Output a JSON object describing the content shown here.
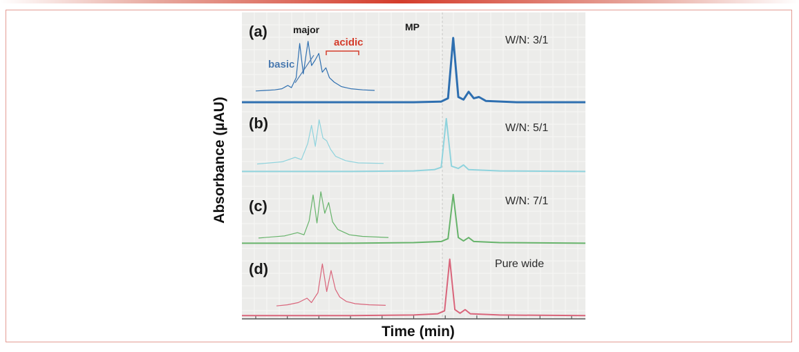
{
  "chart_data": {
    "type": "line",
    "title": "",
    "xlabel": "Time (min)",
    "ylabel": "Absorbance (µAU)",
    "x_tick_count": 11,
    "grid": true,
    "panels": [
      {
        "label": "(a)",
        "condition": "W/N: 3/1",
        "color": "#2e6fb0",
        "peak_labels": [
          "major",
          "basic",
          "acidic",
          "MP"
        ],
        "inset": [
          [
            0,
            0.04
          ],
          [
            0.08,
            0.05
          ],
          [
            0.16,
            0.06
          ],
          [
            0.22,
            0.08
          ],
          [
            0.27,
            0.14
          ],
          [
            0.3,
            0.1
          ],
          [
            0.34,
            0.28
          ],
          [
            0.37,
            0.9
          ],
          [
            0.4,
            0.35
          ],
          [
            0.44,
            0.94
          ],
          [
            0.47,
            0.5
          ],
          [
            0.5,
            0.6
          ],
          [
            0.53,
            0.72
          ],
          [
            0.56,
            0.38
          ],
          [
            0.59,
            0.46
          ],
          [
            0.62,
            0.28
          ],
          [
            0.66,
            0.2
          ],
          [
            0.72,
            0.12
          ],
          [
            0.8,
            0.08
          ],
          [
            0.9,
            0.06
          ],
          [
            1,
            0.05
          ]
        ],
        "trace": [
          [
            0,
            0.02
          ],
          [
            0.3,
            0.02
          ],
          [
            0.5,
            0.02
          ],
          [
            0.58,
            0.03
          ],
          [
            0.6,
            0.08
          ],
          [
            0.615,
            1.0
          ],
          [
            0.63,
            0.1
          ],
          [
            0.645,
            0.06
          ],
          [
            0.66,
            0.18
          ],
          [
            0.675,
            0.08
          ],
          [
            0.69,
            0.1
          ],
          [
            0.71,
            0.04
          ],
          [
            0.8,
            0.02
          ],
          [
            1,
            0.02
          ]
        ]
      },
      {
        "label": "(b)",
        "condition": "W/N: 5/1",
        "color": "#8fd3dd",
        "peak_labels": [],
        "inset": [
          [
            0,
            0.08
          ],
          [
            0.1,
            0.1
          ],
          [
            0.2,
            0.12
          ],
          [
            0.3,
            0.2
          ],
          [
            0.35,
            0.16
          ],
          [
            0.4,
            0.45
          ],
          [
            0.43,
            0.78
          ],
          [
            0.46,
            0.4
          ],
          [
            0.49,
            0.88
          ],
          [
            0.52,
            0.55
          ],
          [
            0.55,
            0.5
          ],
          [
            0.58,
            0.35
          ],
          [
            0.62,
            0.22
          ],
          [
            0.7,
            0.14
          ],
          [
            0.8,
            0.1
          ],
          [
            1,
            0.09
          ]
        ],
        "trace": [
          [
            0,
            0.03
          ],
          [
            0.3,
            0.03
          ],
          [
            0.5,
            0.04
          ],
          [
            0.56,
            0.06
          ],
          [
            0.58,
            0.1
          ],
          [
            0.595,
            0.92
          ],
          [
            0.61,
            0.12
          ],
          [
            0.63,
            0.08
          ],
          [
            0.645,
            0.14
          ],
          [
            0.66,
            0.06
          ],
          [
            0.75,
            0.04
          ],
          [
            1,
            0.03
          ]
        ]
      },
      {
        "label": "(c)",
        "condition": "W/N: 7/1",
        "color": "#66b36a",
        "peak_labels": [],
        "inset": [
          [
            0,
            0.04
          ],
          [
            0.1,
            0.06
          ],
          [
            0.2,
            0.08
          ],
          [
            0.3,
            0.14
          ],
          [
            0.35,
            0.1
          ],
          [
            0.39,
            0.36
          ],
          [
            0.42,
            0.84
          ],
          [
            0.45,
            0.32
          ],
          [
            0.48,
            0.9
          ],
          [
            0.51,
            0.5
          ],
          [
            0.54,
            0.7
          ],
          [
            0.57,
            0.34
          ],
          [
            0.61,
            0.2
          ],
          [
            0.7,
            0.1
          ],
          [
            0.8,
            0.07
          ],
          [
            1,
            0.05
          ]
        ],
        "trace": [
          [
            0,
            0.02
          ],
          [
            0.3,
            0.02
          ],
          [
            0.5,
            0.03
          ],
          [
            0.58,
            0.05
          ],
          [
            0.6,
            0.1
          ],
          [
            0.615,
            0.88
          ],
          [
            0.63,
            0.12
          ],
          [
            0.645,
            0.06
          ],
          [
            0.66,
            0.12
          ],
          [
            0.675,
            0.05
          ],
          [
            0.75,
            0.03
          ],
          [
            1,
            0.02
          ]
        ]
      },
      {
        "label": "(d)",
        "condition": "Pure wide",
        "color": "#d9647a",
        "peak_labels": [],
        "inset": [
          [
            0,
            0.06
          ],
          [
            0.1,
            0.08
          ],
          [
            0.2,
            0.12
          ],
          [
            0.28,
            0.2
          ],
          [
            0.32,
            0.12
          ],
          [
            0.38,
            0.3
          ],
          [
            0.42,
            0.82
          ],
          [
            0.46,
            0.32
          ],
          [
            0.5,
            0.7
          ],
          [
            0.54,
            0.36
          ],
          [
            0.58,
            0.22
          ],
          [
            0.64,
            0.14
          ],
          [
            0.72,
            0.1
          ],
          [
            0.85,
            0.08
          ],
          [
            1,
            0.07
          ]
        ],
        "trace": [
          [
            0,
            0.02
          ],
          [
            0.3,
            0.02
          ],
          [
            0.5,
            0.03
          ],
          [
            0.57,
            0.05
          ],
          [
            0.59,
            0.1
          ],
          [
            0.605,
            0.96
          ],
          [
            0.62,
            0.12
          ],
          [
            0.635,
            0.06
          ],
          [
            0.65,
            0.12
          ],
          [
            0.665,
            0.05
          ],
          [
            0.75,
            0.03
          ],
          [
            1,
            0.02
          ]
        ]
      }
    ]
  }
}
